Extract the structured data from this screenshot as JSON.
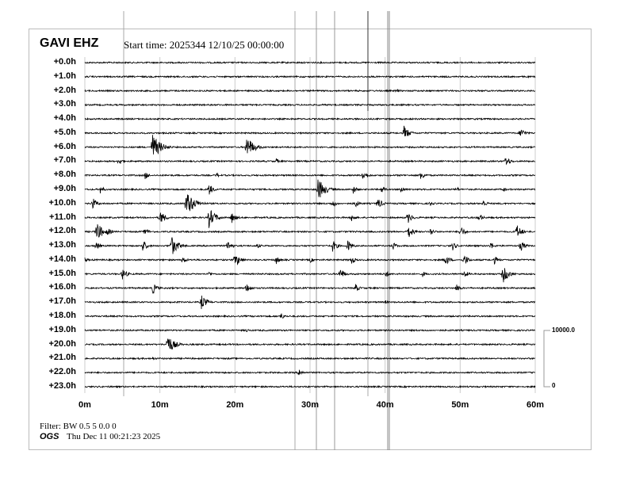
{
  "header": {
    "station": "GAVI EHZ",
    "start_time": "Start time: 2025344 12/10/25 00:00:00"
  },
  "footer": {
    "filter": "Filter: BW 0.5 5 0.0 0",
    "agency": "OGS",
    "timestamp": "Thu Dec 11 00:21:23 2025"
  },
  "chart_data": {
    "type": "line",
    "title": "GAVI EHZ",
    "row_labels": [
      "+0.0h",
      "+1.0h",
      "+2.0h",
      "+3.0h",
      "+4.0h",
      "+5.0h",
      "+6.0h",
      "+7.0h",
      "+8.0h",
      "+9.0h",
      "+10.0h",
      "+11.0h",
      "+12.0h",
      "+13.0h",
      "+14.0h",
      "+15.0h",
      "+16.0h",
      "+17.0h",
      "+18.0h",
      "+19.0h",
      "+20.0h",
      "+21.0h",
      "+22.0h",
      "+23.0h"
    ],
    "x_ticks": [
      "0m",
      "10m",
      "20m",
      "30m",
      "40m",
      "50m",
      "60m"
    ],
    "xlim": [
      0,
      60
    ],
    "scale_bar": {
      "top": "10000.0",
      "bottom": "0"
    },
    "trace_color": "#000000",
    "events": [
      [
        2,
        41.5,
        3
      ],
      [
        5,
        42.5,
        10
      ],
      [
        5,
        58,
        8
      ],
      [
        6,
        9,
        18
      ],
      [
        6,
        21.5,
        16
      ],
      [
        7,
        4.5,
        6
      ],
      [
        7,
        25.5,
        4
      ],
      [
        7,
        56,
        8
      ],
      [
        8,
        8,
        6
      ],
      [
        8,
        17.5,
        4
      ],
      [
        8,
        37,
        8
      ],
      [
        8,
        44.7,
        7
      ],
      [
        9,
        2,
        6
      ],
      [
        9,
        16.5,
        8
      ],
      [
        9,
        31,
        16
      ],
      [
        9,
        35.7,
        6
      ],
      [
        9,
        39.5,
        6
      ],
      [
        9,
        42,
        6
      ],
      [
        9,
        49.5,
        4
      ],
      [
        9,
        55.7,
        4
      ],
      [
        10,
        1,
        8
      ],
      [
        10,
        13.5,
        18
      ],
      [
        10,
        33,
        6
      ],
      [
        10,
        36,
        6
      ],
      [
        10,
        39,
        8
      ],
      [
        10,
        46,
        4
      ],
      [
        10,
        53,
        6
      ],
      [
        11,
        10,
        10
      ],
      [
        11,
        16.5,
        14
      ],
      [
        11,
        19.5,
        8
      ],
      [
        11,
        35.5,
        6
      ],
      [
        11,
        43,
        8
      ],
      [
        11,
        52.5,
        6
      ],
      [
        12,
        1.5,
        14
      ],
      [
        12,
        3,
        6
      ],
      [
        12,
        8,
        6
      ],
      [
        12,
        43,
        10
      ],
      [
        12,
        46,
        6
      ],
      [
        12,
        50,
        8
      ],
      [
        12,
        57.5,
        10
      ],
      [
        13,
        1.5,
        6
      ],
      [
        13,
        7.7,
        8
      ],
      [
        13,
        11.5,
        14
      ],
      [
        13,
        19,
        8
      ],
      [
        13,
        23,
        4
      ],
      [
        13,
        33,
        8
      ],
      [
        13,
        35,
        8
      ],
      [
        13,
        41,
        6
      ],
      [
        13,
        49,
        6
      ],
      [
        13,
        54,
        6
      ],
      [
        13,
        58,
        8
      ],
      [
        14,
        0,
        4
      ],
      [
        14,
        13,
        6
      ],
      [
        14,
        20,
        10
      ],
      [
        14,
        25.5,
        6
      ],
      [
        14,
        30,
        4
      ],
      [
        14,
        35.5,
        6
      ],
      [
        14,
        48,
        8
      ],
      [
        14,
        50.5,
        8
      ],
      [
        14,
        54.5,
        6
      ],
      [
        15,
        5,
        8
      ],
      [
        15,
        16.5,
        4
      ],
      [
        15,
        34,
        8
      ],
      [
        15,
        40,
        6
      ],
      [
        15,
        45,
        4
      ],
      [
        15,
        50.5,
        6
      ],
      [
        15,
        55.7,
        12
      ],
      [
        16,
        9,
        8
      ],
      [
        16,
        21.5,
        8
      ],
      [
        16,
        36,
        6
      ],
      [
        16,
        49.5,
        6
      ],
      [
        17,
        15.5,
        10
      ],
      [
        17,
        40,
        3
      ],
      [
        18,
        26,
        6
      ],
      [
        19,
        21.5,
        3
      ],
      [
        20,
        11,
        14
      ],
      [
        21,
        9,
        3
      ],
      [
        22,
        28.5,
        6
      ]
    ]
  }
}
